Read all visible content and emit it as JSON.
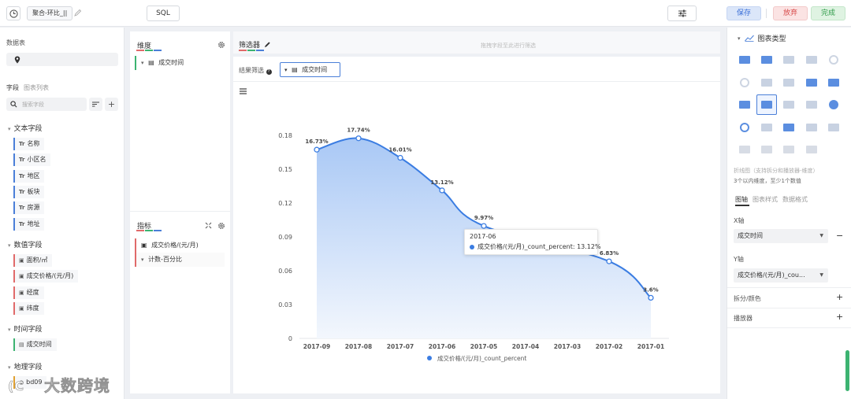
{
  "topbar": {
    "name": "聚合-环比_||",
    "sql_label": "SQL",
    "save_label": "保存",
    "discard_label": "放弃",
    "done_label": "完成"
  },
  "left": {
    "table_title": "数据表",
    "tab_fields": "字段",
    "tab_chart_list": "图表列表",
    "search_placeholder": "搜索字段",
    "groups": {
      "text": "文本字段",
      "number": "数值字段",
      "time": "时间字段",
      "geo": "地理字段"
    },
    "text_fields": [
      "名称",
      "小区名",
      "地区",
      "板块",
      "房源",
      "地址"
    ],
    "number_fields": [
      "面积/㎡",
      "成交价格/(元/月)",
      "经度",
      "纬度"
    ],
    "time_fields": [
      "成交时间"
    ],
    "geo_fields": [
      "bd09"
    ],
    "type_text_icon": "Tr"
  },
  "dims": {
    "title": "维度",
    "items": [
      "成交时间"
    ]
  },
  "metrics": {
    "title": "指标",
    "field": "成交价格/(元/月)",
    "agg": "计数-百分比"
  },
  "filter": {
    "title": "筛选器",
    "hint": "拖拽字段至此进行筛选",
    "result_label": "结果筛选",
    "result_field": "成交时间"
  },
  "tooltip": {
    "title": "2017-06",
    "text": "成交价格/(元/月)_count_percent: 13.12%"
  },
  "right": {
    "chart_type_title": "图表类型",
    "desc_line1": "折线图（支持拆分和播放器-维度）",
    "desc_line2": "3个以内维度，至少1个数值",
    "tab_axis": "图轴",
    "tab_style": "图表样式",
    "tab_format": "数据格式",
    "x_label": "X轴",
    "x_value": "成交时间",
    "y_label": "Y轴",
    "y_value": "成交价格/(元/月)_cou...",
    "split_label": "拆分/颜色",
    "player_label": "播放器"
  },
  "watermark": "大数跨境",
  "colors": {
    "accent": "#3b7de2",
    "area_top": "#a9c8f5",
    "area_bottom": "#f3f7fd"
  },
  "chart_data": {
    "type": "area",
    "categories": [
      "2017-09",
      "2017-08",
      "2017-07",
      "2017-06",
      "2017-05",
      "2017-04",
      "2017-03",
      "2017-02",
      "2017-01"
    ],
    "series": [
      {
        "name": "成交价格/(元/月)_count_percent",
        "values": [
          0.1673,
          0.1774,
          0.1601,
          0.1312,
          0.0997,
          null,
          null,
          0.0683,
          0.036
        ],
        "labels": [
          "16.73%",
          "17.74%",
          "16.01%",
          "13.12%",
          "9.97%",
          "",
          "",
          "6.83%",
          "3.6%"
        ]
      }
    ],
    "yticks": [
      "0",
      "0.03",
      "0.06",
      "0.09",
      "0.12",
      "0.15",
      "0.18"
    ],
    "ylim": [
      0,
      0.18
    ],
    "legend": "bottom",
    "grid": false
  }
}
